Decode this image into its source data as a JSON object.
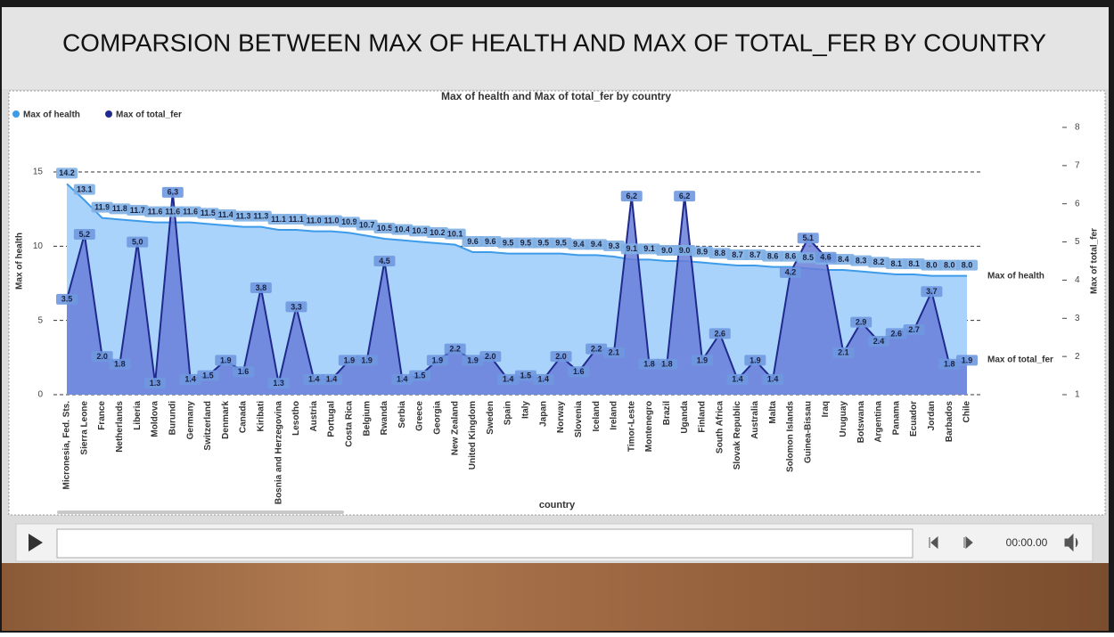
{
  "slide_title": "COMPARSION BETWEEN MAX OF HEALTH AND MAX OF TOTAL_FER BY COUNTRY",
  "player": {
    "time": "00:00.00"
  },
  "chart_data": {
    "type": "area",
    "title": "Max of health and Max of total_fer by country",
    "x_label": "country",
    "y_label": "Max of health",
    "y2_label": "Max of total_fer",
    "categories": [
      "Micronesia, Fed. Sts.",
      "Sierra Leone",
      "France",
      "Netherlands",
      "Liberia",
      "Moldova",
      "Burundi",
      "Germany",
      "Switzerland",
      "Denmark",
      "Canada",
      "Kiribati",
      "Bosnia and Herzegovina",
      "Lesotho",
      "Austria",
      "Portugal",
      "Costa Rica",
      "Belgium",
      "Rwanda",
      "Serbia",
      "Greece",
      "Georgia",
      "New Zealand",
      "United Kingdom",
      "Sweden",
      "Spain",
      "Italy",
      "Japan",
      "Norway",
      "Slovenia",
      "Iceland",
      "Ireland",
      "Timor-Leste",
      "Montenegro",
      "Brazil",
      "Uganda",
      "Finland",
      "South Africa",
      "Slovak Republic",
      "Australia",
      "Malta",
      "Solomon Islands",
      "Guinea-Bissau",
      "Iraq",
      "Uruguay",
      "Botswana",
      "Argentina",
      "Panama",
      "Ecuador",
      "Jordan",
      "Barbados",
      "Chile"
    ],
    "ylim": [
      0,
      18
    ],
    "yticks": [
      0,
      5,
      10,
      15
    ],
    "y2lim": [
      1,
      8
    ],
    "y2ticks": [
      1,
      2,
      3,
      4,
      5,
      6,
      7,
      8
    ],
    "grid": true,
    "legend": "top-left",
    "series": [
      {
        "name": "Max of health",
        "color": "#3d9be9",
        "values": [
          14.2,
          13.1,
          11.9,
          11.8,
          11.7,
          11.6,
          11.6,
          11.6,
          11.5,
          11.4,
          11.3,
          11.3,
          11.1,
          11.1,
          11.0,
          11.0,
          10.9,
          10.7,
          10.5,
          10.4,
          10.3,
          10.2,
          10.1,
          9.6,
          9.6,
          9.5,
          9.5,
          9.5,
          9.5,
          9.4,
          9.4,
          9.3,
          9.1,
          9.1,
          9.0,
          9.0,
          8.9,
          8.8,
          8.7,
          8.7,
          8.6,
          8.6,
          8.5,
          8.4,
          8.4,
          8.3,
          8.2,
          8.1,
          8.1,
          8.0,
          8.0,
          8.0
        ],
        "value_labels": [
          "14.2",
          "13.1",
          "11.9",
          "11.8",
          "11.7",
          "11.6",
          "11.6",
          "11.6",
          "11.5",
          "11.4",
          "11.3",
          "11.3",
          "11.1",
          "11.1",
          "11.0",
          "11.0",
          "10.9",
          "10.7",
          "10.5",
          "10.4",
          "10.3",
          "10.2",
          "10.1",
          "9.6",
          "9.6",
          "9.5",
          "9.5",
          "9.5",
          "9.5",
          "9.4",
          "9.4",
          "9.3",
          "9.1",
          "9.1",
          "9.0",
          "9.0",
          "8.9",
          "8.8",
          "8.7",
          "8.7",
          "8.6",
          "8.6",
          "8.5",
          "8.4",
          "8.4",
          "8.3",
          "8.2",
          "8.1",
          "8.1",
          "8.0",
          "8.0",
          "8.0"
        ]
      },
      {
        "name": "Max of total_fer",
        "color": "#1f2a8c",
        "axis": "y2",
        "values": [
          3.5,
          5.2,
          2.0,
          1.8,
          5.0,
          1.3,
          6.3,
          1.4,
          1.5,
          1.9,
          1.6,
          3.8,
          1.3,
          3.3,
          1.4,
          1.4,
          1.9,
          1.9,
          4.5,
          1.4,
          1.5,
          1.9,
          2.2,
          1.9,
          2.0,
          1.4,
          1.5,
          1.4,
          2.0,
          1.6,
          2.2,
          2.1,
          6.2,
          1.8,
          1.8,
          6.2,
          1.9,
          2.6,
          1.4,
          1.9,
          1.4,
          4.2,
          5.1,
          4.6,
          2.1,
          2.9,
          2.4,
          2.6,
          2.7,
          3.7,
          1.8,
          1.9
        ],
        "value_labels": [
          "3.5",
          "5.2",
          "2.0",
          "1.8",
          "5.0",
          "1.3",
          "6.3",
          "1.4",
          "1.5",
          "1.9",
          "1.6",
          "3.8",
          "1.3",
          "3.3",
          "1.4",
          "1.4",
          "1.9",
          "1.9",
          "4.5",
          "1.4",
          "1.5",
          "1.9",
          "2.2",
          "1.9",
          "2.0",
          "1.4",
          "1.5",
          "1.4",
          "2.0",
          "1.6",
          "2.2",
          "2.1",
          "6.2",
          "1.8",
          "1.8",
          "6.2",
          "1.9",
          "2.6",
          "1.4",
          "1.9",
          "1.4",
          "4.2",
          "5.1",
          "4.6",
          "2.1",
          "2.9",
          "2.4",
          "2.6",
          "2.7",
          "3.7",
          "1.8",
          "1.9"
        ]
      }
    ]
  }
}
